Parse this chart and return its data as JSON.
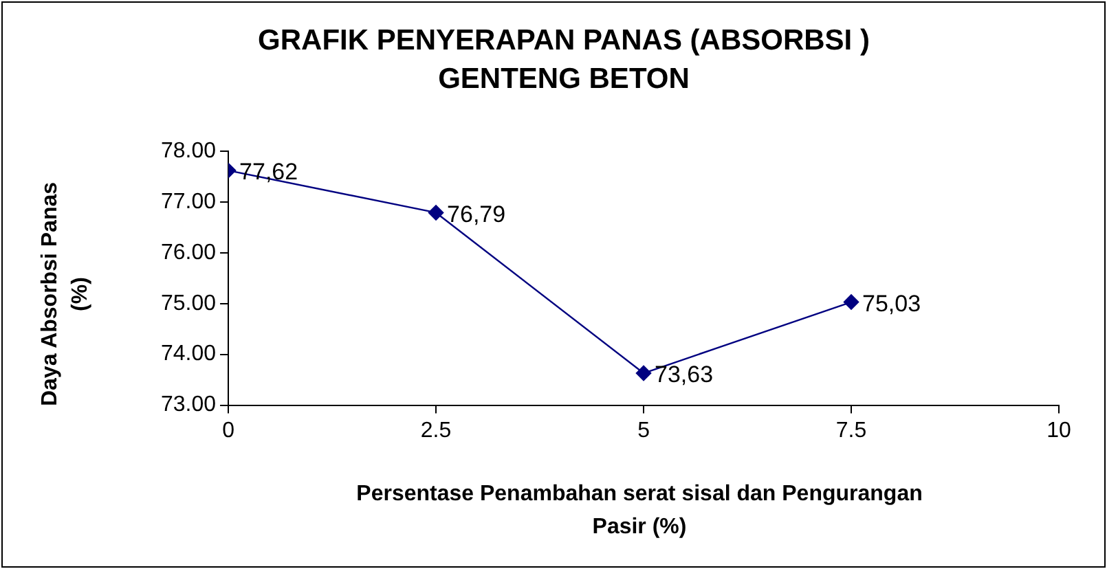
{
  "chart_data": {
    "type": "line",
    "title": "GRAFIK PENYERAPAN PANAS (ABSORBSI ) GENTENG BETON",
    "xlabel": "Persentase Penambahan serat sisal dan Pengurangan Pasir (%)",
    "ylabel": "Daya Absorbsi Panas (%)",
    "x": [
      0,
      2.5,
      5,
      7.5
    ],
    "series": [
      {
        "color": "#000080",
        "values": [
          77.62,
          76.79,
          73.63,
          75.03
        ],
        "value_labels": [
          "77,62",
          "76,79",
          "73,63",
          "75,03"
        ]
      }
    ],
    "xlim": [
      0,
      10
    ],
    "xticks": [
      0,
      2.5,
      5,
      7.5,
      10
    ],
    "ylim": [
      73,
      78
    ],
    "yticks": [
      {
        "value": 73,
        "label": "73.00"
      },
      {
        "value": 74,
        "label": "74.00"
      },
      {
        "value": 75,
        "label": "75.00"
      },
      {
        "value": 76,
        "label": "76.00"
      },
      {
        "value": 77,
        "label": "77.00"
      },
      {
        "value": 78,
        "label": "78.00"
      }
    ],
    "grid": false,
    "legend": false,
    "marker": "diamond",
    "line_style": "solid"
  }
}
